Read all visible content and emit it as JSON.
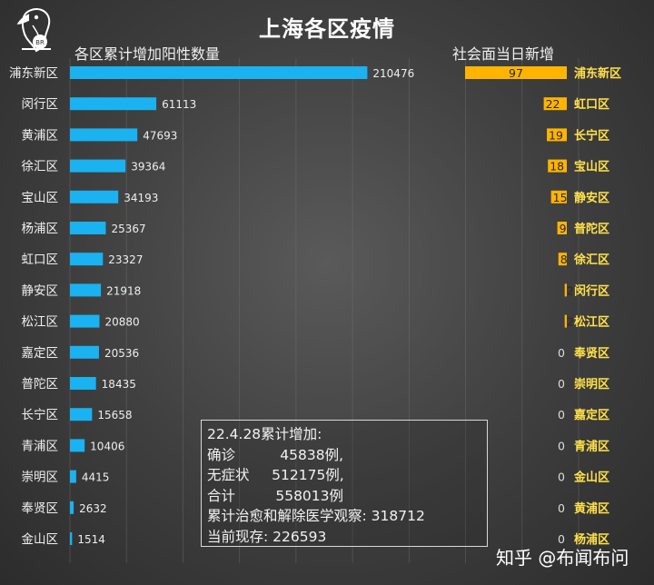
{
  "chart_data": [
    {
      "type": "bar",
      "orientation": "horizontal",
      "title": "上海各区疫情",
      "subtitle": "各区累计增加阳性数量",
      "categories": [
        "浦东新区",
        "闵行区",
        "黄浦区",
        "徐汇区",
        "宝山区",
        "杨浦区",
        "虹口区",
        "静安区",
        "松江区",
        "嘉定区",
        "普陀区",
        "长宁区",
        "青浦区",
        "崇明区",
        "奉贤区",
        "金山区"
      ],
      "values": [
        210476,
        61113,
        47693,
        39364,
        34193,
        25367,
        23327,
        21918,
        20880,
        20536,
        18435,
        15658,
        10406,
        4415,
        2632,
        1514
      ],
      "xlim": [
        0,
        360000
      ],
      "grid": true,
      "colors": {
        "bar": "#1ab2f0"
      }
    },
    {
      "type": "bar",
      "orientation": "horizontal",
      "direction": "right-to-left",
      "subtitle": "社会面当日新增",
      "categories": [
        "浦东新区",
        "虹口区",
        "长宁区",
        "宝山区",
        "静安区",
        "普陀区",
        "徐汇区",
        "闵行区",
        "松江区",
        "奉贤区",
        "崇明区",
        "嘉定区",
        "青浦区",
        "金山区",
        "黄浦区",
        "杨浦区"
      ],
      "values": [
        97,
        22,
        19,
        18,
        15,
        9,
        8,
        2,
        2,
        0,
        0,
        0,
        0,
        0,
        0,
        0
      ],
      "xlim": [
        0,
        105
      ],
      "colors": {
        "bar": "#ffb400",
        "label": "#ffe14a"
      }
    }
  ],
  "notes": {
    "line1": "22.4.28累计增加:",
    "line2": "确诊          45838例,",
    "line3": "无症状     512175例,",
    "line4": "合计         558013例",
    "line5": "累计治愈和解除医学观察: 318712",
    "line6": "当前现存: 226593"
  },
  "logo": {
    "icon": "parrot-icon",
    "text": "BR"
  },
  "brand": "知乎 @布闻布问"
}
